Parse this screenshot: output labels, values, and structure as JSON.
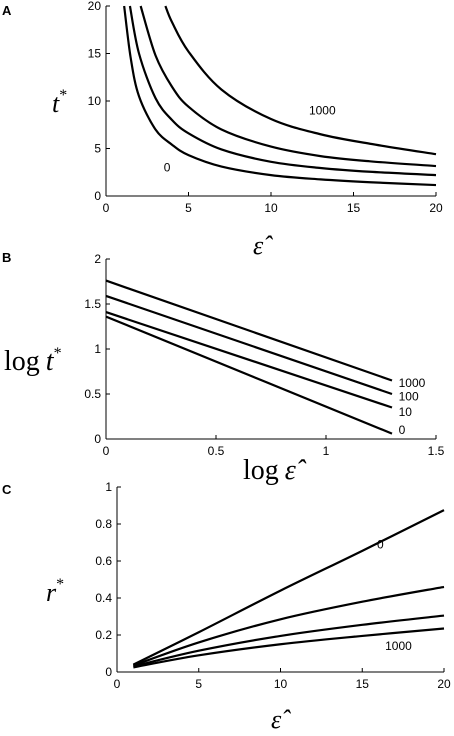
{
  "chart_data": [
    {
      "panel": "A",
      "type": "line",
      "ylabel": "t*",
      "xlabel": "ε̂",
      "xlim": [
        0,
        20
      ],
      "ylim": [
        0,
        20
      ],
      "x_ticks": [
        "0",
        "5",
        "10",
        "15",
        "20"
      ],
      "y_ticks": [
        "0",
        "5",
        "10",
        "15",
        "20"
      ],
      "series": [
        {
          "name": "0",
          "points": [
            [
              1.1,
              20
            ],
            [
              1.5,
              14.5
            ],
            [
              2,
              10.5
            ],
            [
              3,
              7
            ],
            [
              4,
              5.4
            ],
            [
              5,
              4.3
            ],
            [
              7,
              3.1
            ],
            [
              10,
              2.2
            ],
            [
              13,
              1.75
            ],
            [
              16,
              1.45
            ],
            [
              20,
              1.15
            ]
          ]
        },
        {
          "name": "",
          "points": [
            [
              1.45,
              20
            ],
            [
              2,
              15
            ],
            [
              3,
              10.3
            ],
            [
              4,
              8
            ],
            [
              5,
              6.6
            ],
            [
              7,
              4.9
            ],
            [
              10,
              3.6
            ],
            [
              13,
              2.95
            ],
            [
              16,
              2.55
            ],
            [
              20,
              2.2
            ]
          ]
        },
        {
          "name": "",
          "points": [
            [
              2.1,
              20
            ],
            [
              3,
              14.8
            ],
            [
              4,
              11.5
            ],
            [
              5,
              9.4
            ],
            [
              7,
              7.0
            ],
            [
              10,
              5.2
            ],
            [
              13,
              4.2
            ],
            [
              16,
              3.65
            ],
            [
              20,
              3.15
            ]
          ]
        },
        {
          "name": "1000",
          "points": [
            [
              3.6,
              20
            ],
            [
              4,
              18.3
            ],
            [
              5,
              15.2
            ],
            [
              7,
              11.2
            ],
            [
              10,
              8.1
            ],
            [
              13,
              6.5
            ],
            [
              16,
              5.5
            ],
            [
              20,
              4.4
            ]
          ]
        }
      ],
      "annotations": [
        {
          "text": "1000",
          "x": 12.3,
          "y": 9.0
        },
        {
          "text": "0",
          "x": 3.5,
          "y": 3.0
        }
      ]
    },
    {
      "panel": "B",
      "type": "line",
      "ylabel_prefix": "log",
      "ylabel": "t*",
      "xlabel_prefix": "log",
      "xlabel": "ε̂",
      "xlim": [
        0,
        1.5
      ],
      "ylim": [
        0,
        2
      ],
      "x_ticks": [
        "0",
        "0.5",
        "1",
        "1.5"
      ],
      "y_ticks": [
        "0",
        "0.5",
        "1",
        "1.5",
        "2"
      ],
      "series": [
        {
          "name": "0",
          "points": [
            [
              0,
              1.36
            ],
            [
              1.3,
              0.06
            ]
          ]
        },
        {
          "name": "10",
          "points": [
            [
              0,
              1.41
            ],
            [
              1.3,
              0.35
            ]
          ]
        },
        {
          "name": "100",
          "points": [
            [
              0,
              1.59
            ],
            [
              1.3,
              0.5
            ]
          ]
        },
        {
          "name": "1000",
          "points": [
            [
              0,
              1.76
            ],
            [
              1.3,
              0.65
            ]
          ]
        }
      ],
      "annotations": [
        {
          "text": "1000",
          "x": 1.33,
          "y": 0.62
        },
        {
          "text": "100",
          "x": 1.33,
          "y": 0.47
        },
        {
          "text": "10",
          "x": 1.33,
          "y": 0.3
        },
        {
          "text": "0",
          "x": 1.33,
          "y": 0.1
        }
      ]
    },
    {
      "panel": "C",
      "type": "line",
      "ylabel": "r*",
      "xlabel": "ε̂",
      "xlim": [
        0,
        20
      ],
      "ylim": [
        0,
        1
      ],
      "x_ticks": [
        "0",
        "5",
        "10",
        "15",
        "20"
      ],
      "y_ticks": [
        "0",
        "0.2",
        "0.4",
        "0.6",
        "0.8",
        "1"
      ],
      "series": [
        {
          "name": "0",
          "points": [
            [
              1,
              0.04
            ],
            [
              5,
              0.215
            ],
            [
              10,
              0.44
            ],
            [
              15,
              0.655
            ],
            [
              20,
              0.875
            ]
          ]
        },
        {
          "name": "",
          "points": [
            [
              1,
              0.035
            ],
            [
              5,
              0.16
            ],
            [
              10,
              0.285
            ],
            [
              15,
              0.38
            ],
            [
              20,
              0.46
            ]
          ]
        },
        {
          "name": "",
          "points": [
            [
              1,
              0.03
            ],
            [
              5,
              0.115
            ],
            [
              10,
              0.195
            ],
            [
              15,
              0.255
            ],
            [
              20,
              0.305
            ]
          ]
        },
        {
          "name": "1000",
          "points": [
            [
              1,
              0.025
            ],
            [
              5,
              0.09
            ],
            [
              10,
              0.15
            ],
            [
              15,
              0.195
            ],
            [
              20,
              0.235
            ]
          ]
        }
      ],
      "annotations": [
        {
          "text": "0",
          "x": 15.9,
          "y": 0.69
        },
        {
          "text": "1000",
          "x": 16.4,
          "y": 0.14
        }
      ]
    }
  ]
}
